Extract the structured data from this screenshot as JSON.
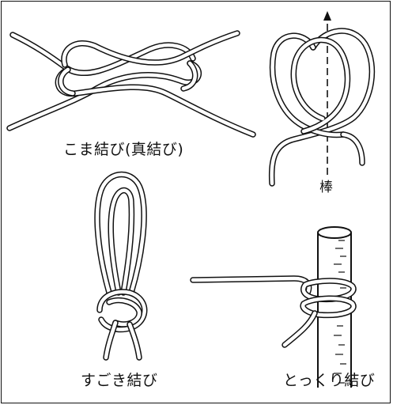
{
  "captions": {
    "koma": "こま結び(真結び)",
    "bou": "棒",
    "sugoki": "すごき結び",
    "tokkuri": "とっくり結び"
  },
  "colors": {
    "ink": "#111111",
    "paper": "#ffffff"
  }
}
